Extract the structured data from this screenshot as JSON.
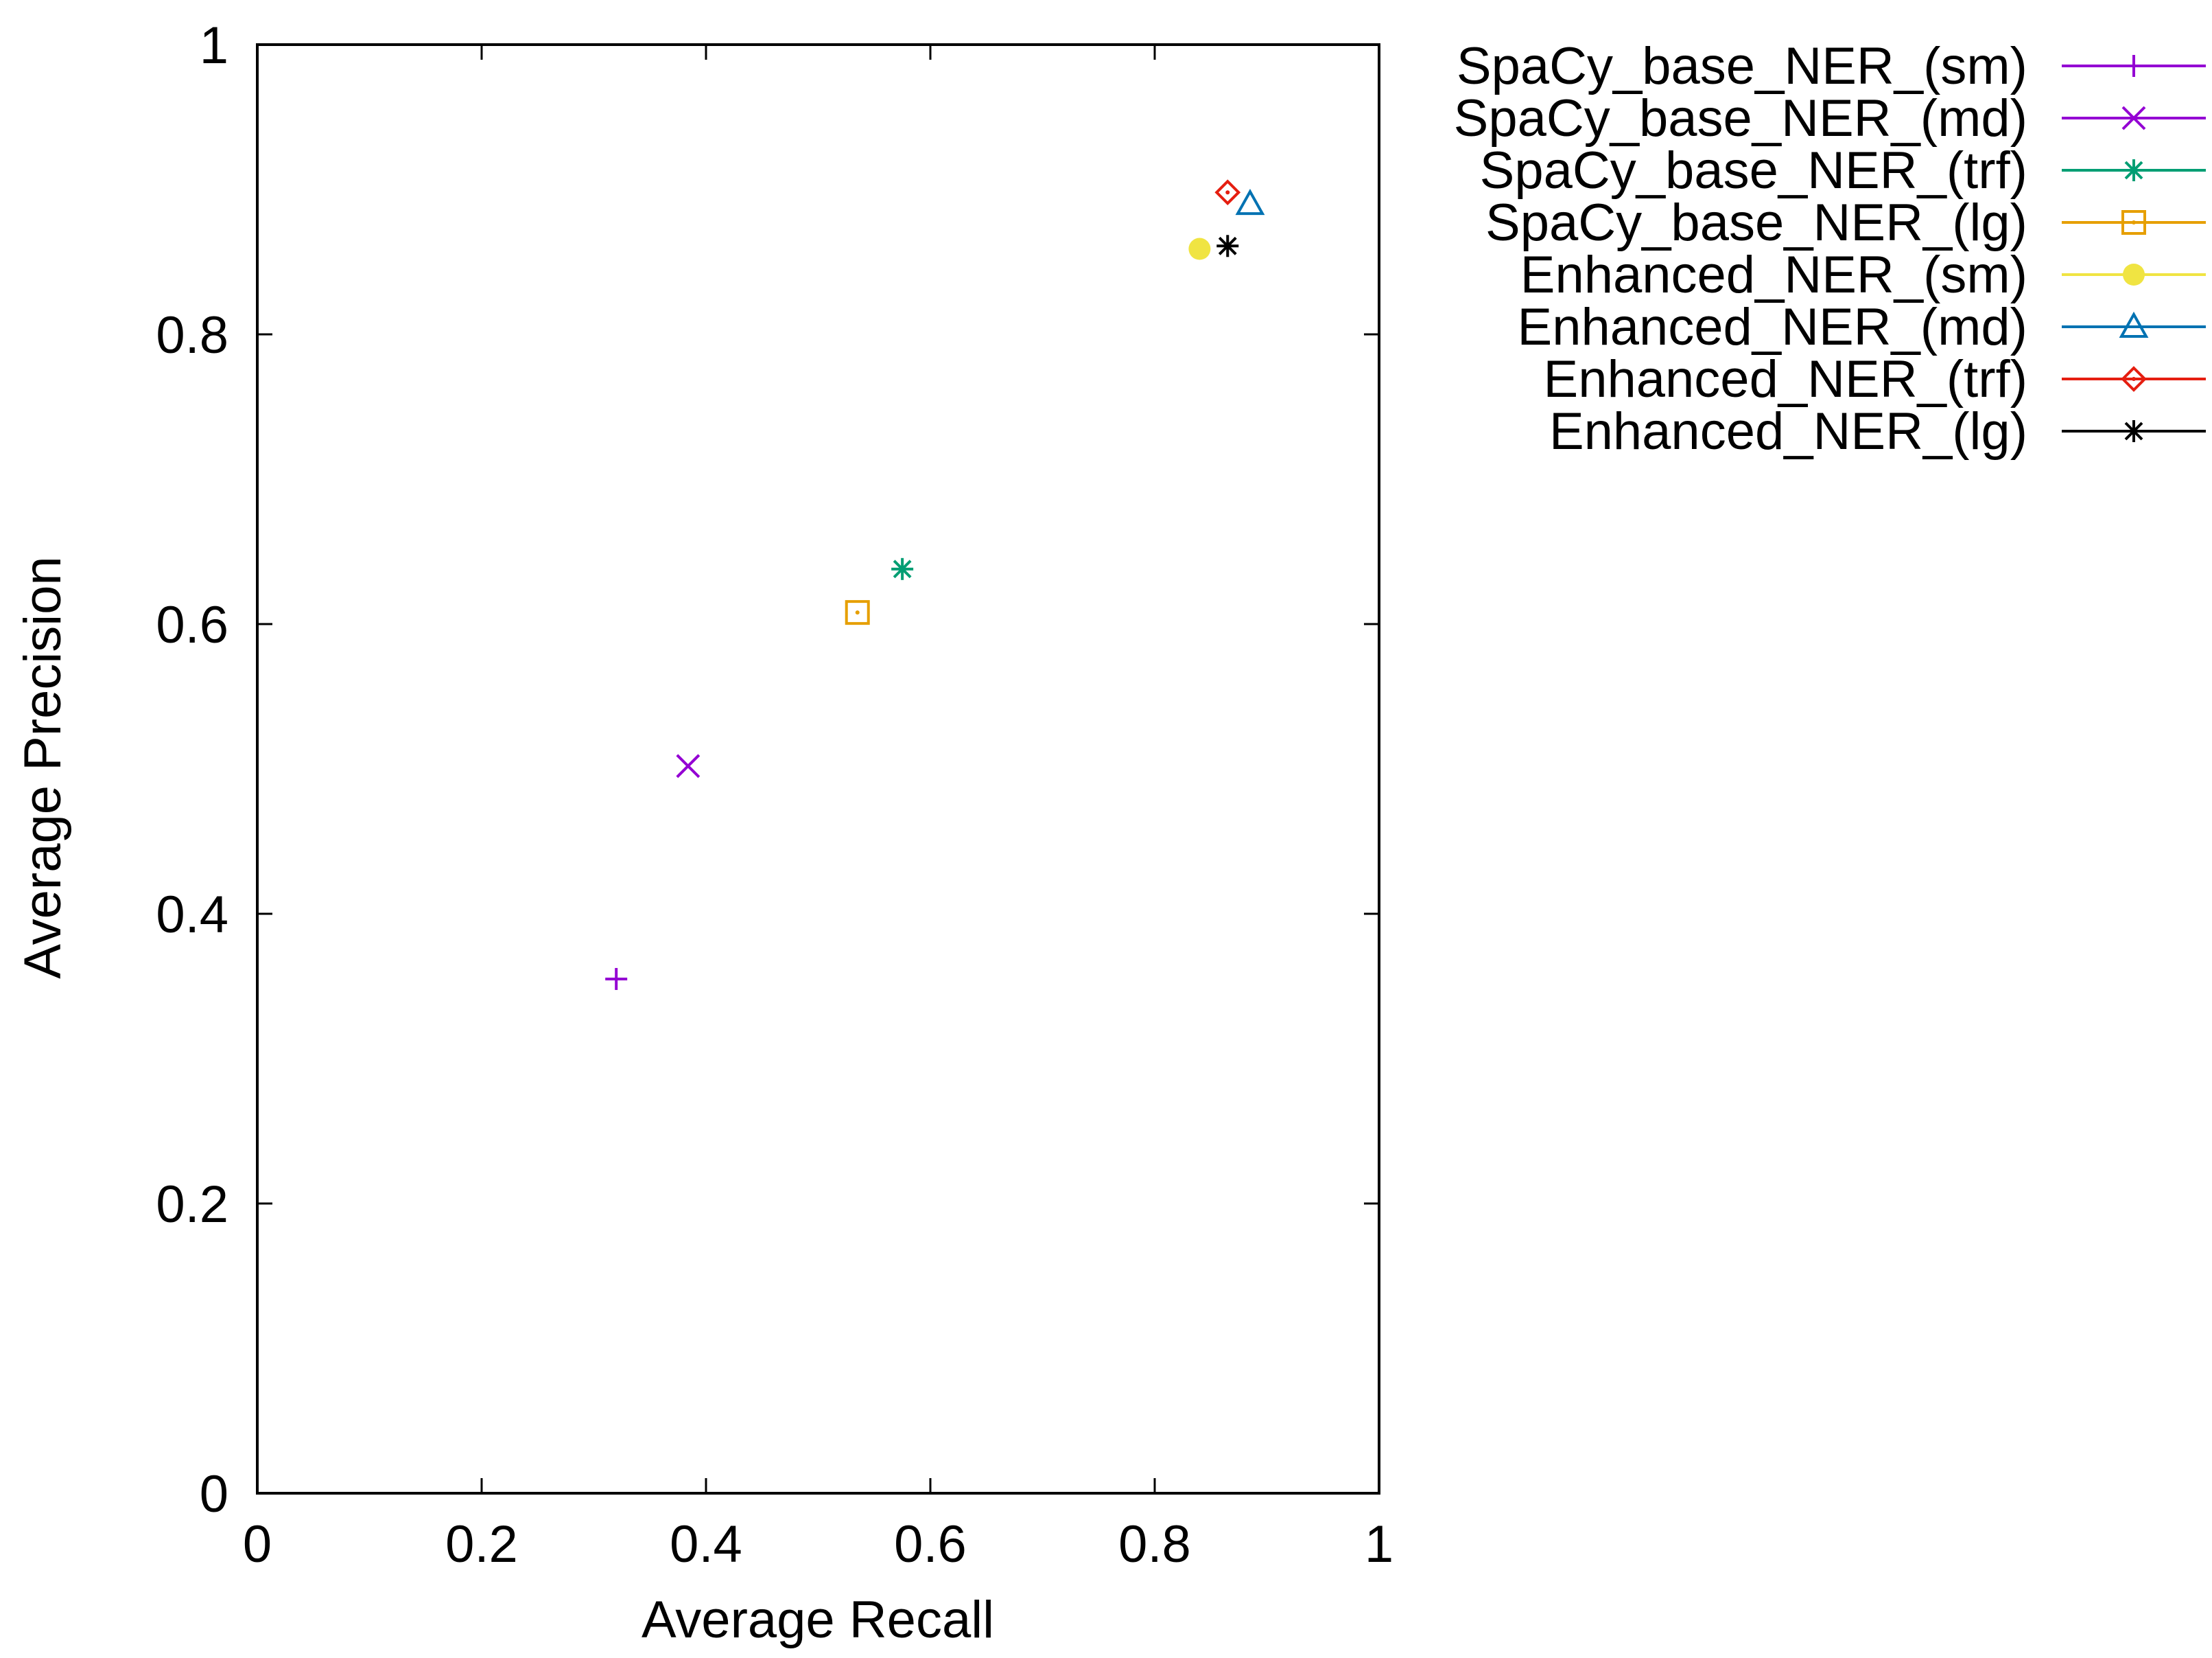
{
  "chart_data": {
    "type": "scatter",
    "title": "",
    "xlabel": "Average Recall",
    "ylabel": "Average Precision",
    "xlim": [
      0,
      1
    ],
    "ylim": [
      0,
      1
    ],
    "x_ticks": [
      0,
      0.2,
      0.4,
      0.6,
      0.8,
      1
    ],
    "x_tick_labels": [
      "0",
      "0.2",
      "0.4",
      "0.6",
      "0.8",
      "1"
    ],
    "y_ticks": [
      0,
      0.2,
      0.4,
      0.6,
      0.8,
      1
    ],
    "y_tick_labels": [
      "0",
      "0.2",
      "0.4",
      "0.6",
      "0.8",
      "1"
    ],
    "grid": false,
    "legend_position": "right",
    "series": [
      {
        "name": "SpaCy_base_NER_(sm)",
        "color": "#9400d3",
        "marker": "plus",
        "x": [
          0.32
        ],
        "y": [
          0.355
        ]
      },
      {
        "name": "SpaCy_base_NER_(md)",
        "color": "#9400d3",
        "marker": "cross",
        "x": [
          0.384
        ],
        "y": [
          0.502
        ]
      },
      {
        "name": "SpaCy_base_NER_(trf)",
        "color": "#009e73",
        "marker": "asterisk",
        "x": [
          0.575
        ],
        "y": [
          0.638
        ]
      },
      {
        "name": "SpaCy_base_NER_(lg)",
        "color": "#e69f00",
        "marker": "square",
        "x": [
          0.535
        ],
        "y": [
          0.608
        ]
      },
      {
        "name": "Enhanced_NER_(sm)",
        "color": "#f0e442",
        "marker": "filled-circle",
        "x": [
          0.84
        ],
        "y": [
          0.859
        ]
      },
      {
        "name": "Enhanced_NER_(md)",
        "color": "#0072b2",
        "marker": "triangle",
        "x": [
          0.885
        ],
        "y": [
          0.89
        ]
      },
      {
        "name": "Enhanced_NER_(trf)",
        "color": "#e51e10",
        "marker": "diamond",
        "x": [
          0.865
        ],
        "y": [
          0.898
        ]
      },
      {
        "name": "Enhanced_NER_(lg)",
        "color": "#000000",
        "marker": "asterisk",
        "x": [
          0.865
        ],
        "y": [
          0.861
        ]
      }
    ]
  }
}
